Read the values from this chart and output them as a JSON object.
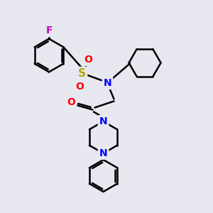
{
  "bg_color": "#e8e8f0",
  "bond_color": "#000000",
  "atom_colors": {
    "F": "#cc00cc",
    "S": "#aaaa00",
    "O": "#ff0000",
    "N": "#0000ff",
    "C": "#000000"
  },
  "line_width": 1.8,
  "font_size": 10,
  "figsize": [
    3.0,
    3.0
  ],
  "dpi": 100
}
